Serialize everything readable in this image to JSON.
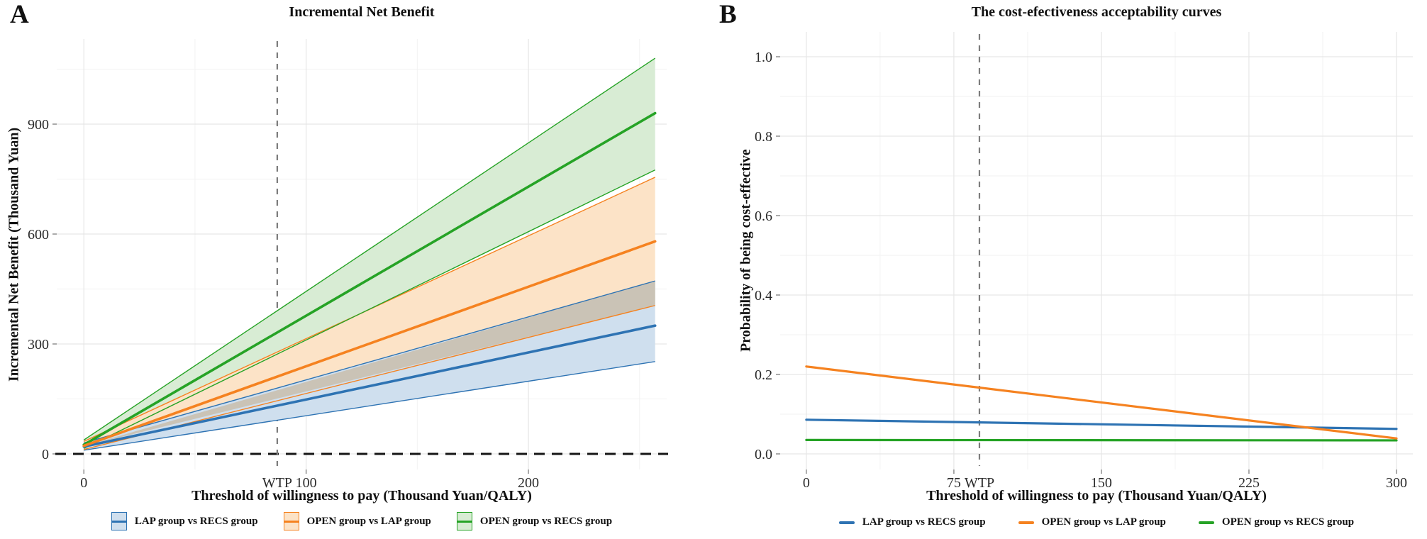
{
  "chart_data": [
    {
      "id": "panel-a",
      "panel_label": "A",
      "type": "line",
      "title": "Incremental Net Benefit",
      "xlabel": "Threshold of willingness to pay (Thousand Yuan/QALY)",
      "ylabel": "Incremental Net Benefit (Thousand Yuan)",
      "xlim": [
        -12.2,
        262.2
      ],
      "ylim": [
        -42.6,
        1132.3
      ],
      "xticks": [
        {
          "v": 0,
          "label": "0"
        },
        {
          "v": 100,
          "label": "100"
        },
        {
          "v": 200,
          "label": "200"
        }
      ],
      "yticks": [
        {
          "v": 0,
          "label": "0"
        },
        {
          "v": 300,
          "label": "300"
        },
        {
          "v": 600,
          "label": "600"
        },
        {
          "v": 900,
          "label": "900"
        }
      ],
      "xminor": [
        50,
        150,
        250
      ],
      "yminor": [
        150,
        450,
        750,
        1050
      ],
      "wtp": {
        "label": "WTP",
        "value": 87
      },
      "zero_line": true,
      "grid": true,
      "legend_position": "bottom",
      "legend_type": "ribbon",
      "x": [
        0,
        257
      ],
      "series": [
        {
          "name": "LAP group vs RECS group",
          "color": "#2e73b3",
          "fill": "#cfdfee",
          "values": [
            20,
            350
          ],
          "lower": [
            10,
            252
          ],
          "upper": [
            30,
            472
          ]
        },
        {
          "name": "OPEN group vs LAP group",
          "color": "#f58220",
          "fill": "#fce3c7",
          "values": [
            22,
            580
          ],
          "lower": [
            12,
            405
          ],
          "upper": [
            34,
            755
          ]
        },
        {
          "name": "OPEN group vs RECS group",
          "color": "#26a326",
          "fill": "#d8ecd4",
          "values": [
            25,
            930
          ],
          "lower": [
            15,
            775
          ],
          "upper": [
            38,
            1080
          ]
        }
      ],
      "overlap_fill": "#cac3b6"
    },
    {
      "id": "panel-b",
      "panel_label": "B",
      "type": "line",
      "title": "The cost-efectiveness acceptability curves",
      "xlabel": "Threshold of willingness to pay (Thousand Yuan/QALY)",
      "ylabel": "Probability of being cost-effective",
      "xlim": [
        -13.3,
        308.3
      ],
      "ylim": [
        -0.0393,
        1.0625
      ],
      "xticks": [
        {
          "v": 0,
          "label": "0"
        },
        {
          "v": 75,
          "label": "75"
        },
        {
          "v": 150,
          "label": "150"
        },
        {
          "v": 225,
          "label": "225"
        },
        {
          "v": 300,
          "label": "300"
        }
      ],
      "yticks": [
        {
          "v": 0,
          "label": "0.0"
        },
        {
          "v": 0.2,
          "label": "0.2"
        },
        {
          "v": 0.4,
          "label": "0.4"
        },
        {
          "v": 0.6,
          "label": "0.6"
        },
        {
          "v": 0.8,
          "label": "0.8"
        },
        {
          "v": 1,
          "label": "1.0"
        }
      ],
      "xminor": [
        37.5,
        112.5,
        187.5,
        262.5
      ],
      "yminor": [
        0.1,
        0.3,
        0.5,
        0.7,
        0.9
      ],
      "wtp": {
        "label": "WTP",
        "value": 88
      },
      "zero_line": false,
      "grid": true,
      "legend_position": "bottom",
      "legend_type": "line",
      "x": [
        0,
        300
      ],
      "series": [
        {
          "name": "LAP group vs RECS group",
          "color": "#2e73b3",
          "values": [
            0.086,
            0.063
          ]
        },
        {
          "name": "OPEN group vs LAP group",
          "color": "#f58220",
          "values": [
            0.22,
            0.039
          ]
        },
        {
          "name": "OPEN group vs RECS group",
          "color": "#26a326",
          "values": [
            0.035,
            0.034
          ]
        }
      ]
    }
  ]
}
